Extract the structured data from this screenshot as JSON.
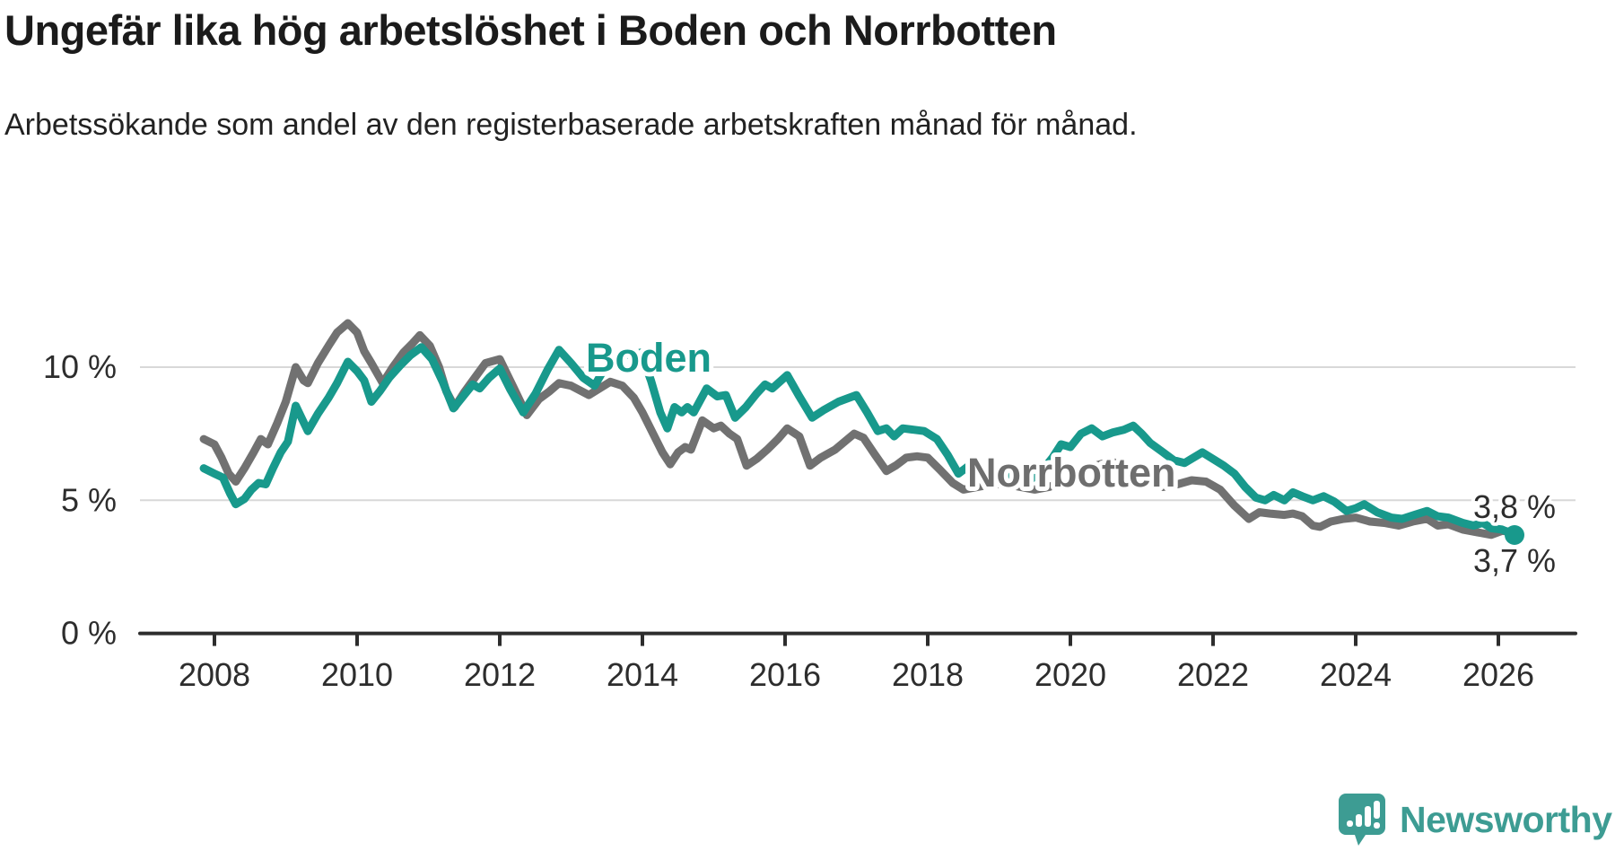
{
  "branding": {
    "name": "Newsworthy",
    "icon": "newsworthy-speech-bubble-chart-icon",
    "color": "#3d9c93"
  },
  "chart_data": {
    "type": "line",
    "title": "Ungefär lika hög arbetslöshet i Boden och Norrbotten",
    "subtitle": "Arbetssökande som andel av den registerbaserade arbetskraften månad för månad.",
    "unit": "%",
    "x_unit": "year (monthly data)",
    "xlim": [
      2007.85,
      2026.45
    ],
    "ylim": [
      0,
      12
    ],
    "grid": "horizontal",
    "yticks": [
      {
        "value": 0,
        "label": "0 %"
      },
      {
        "value": 5,
        "label": "5 %"
      },
      {
        "value": 10,
        "label": "10 %"
      }
    ],
    "xticks": [
      {
        "value": 2008,
        "label": "2008"
      },
      {
        "value": 2010,
        "label": "2010"
      },
      {
        "value": 2012,
        "label": "2012"
      },
      {
        "value": 2014,
        "label": "2014"
      },
      {
        "value": 2016,
        "label": "2016"
      },
      {
        "value": 2018,
        "label": "2018"
      },
      {
        "value": 2020,
        "label": "2020"
      },
      {
        "value": 2022,
        "label": "2022"
      },
      {
        "value": 2024,
        "label": "2024"
      },
      {
        "value": 2026,
        "label": "2026"
      }
    ],
    "series": [
      {
        "name": "Norrbotten",
        "color": "#717171",
        "inline_label": "Norrbotten",
        "end_label": "3,8 %",
        "end_value": 3.8,
        "points": [
          [
            2007.85,
            7.3
          ],
          [
            2008.0,
            7.1
          ],
          [
            2008.1,
            6.6
          ],
          [
            2008.2,
            6.0
          ],
          [
            2008.3,
            5.7
          ],
          [
            2008.42,
            6.2
          ],
          [
            2008.55,
            6.8
          ],
          [
            2008.65,
            7.3
          ],
          [
            2008.75,
            7.1
          ],
          [
            2008.88,
            7.9
          ],
          [
            2009.0,
            8.7
          ],
          [
            2009.14,
            10.0
          ],
          [
            2009.25,
            9.5
          ],
          [
            2009.31,
            9.4
          ],
          [
            2009.45,
            10.15
          ],
          [
            2009.6,
            10.8
          ],
          [
            2009.72,
            11.3
          ],
          [
            2009.87,
            11.65
          ],
          [
            2010.0,
            11.3
          ],
          [
            2010.1,
            10.6
          ],
          [
            2010.2,
            10.15
          ],
          [
            2010.36,
            9.4
          ],
          [
            2010.5,
            10.0
          ],
          [
            2010.65,
            10.55
          ],
          [
            2010.78,
            10.9
          ],
          [
            2010.88,
            11.2
          ],
          [
            2011.02,
            10.8
          ],
          [
            2011.15,
            10.0
          ],
          [
            2011.25,
            9.1
          ],
          [
            2011.37,
            8.5
          ],
          [
            2011.5,
            9.05
          ],
          [
            2011.65,
            9.6
          ],
          [
            2011.8,
            10.15
          ],
          [
            2012.0,
            10.3
          ],
          [
            2012.2,
            9.2
          ],
          [
            2012.38,
            8.2
          ],
          [
            2012.55,
            8.8
          ],
          [
            2012.7,
            9.1
          ],
          [
            2012.83,
            9.4
          ],
          [
            2013.0,
            9.3
          ],
          [
            2013.25,
            8.95
          ],
          [
            2013.55,
            9.45
          ],
          [
            2013.72,
            9.3
          ],
          [
            2013.88,
            8.85
          ],
          [
            2014.0,
            8.3
          ],
          [
            2014.15,
            7.5
          ],
          [
            2014.28,
            6.8
          ],
          [
            2014.39,
            6.35
          ],
          [
            2014.5,
            6.8
          ],
          [
            2014.6,
            7.0
          ],
          [
            2014.68,
            6.9
          ],
          [
            2014.84,
            8.0
          ],
          [
            2015.0,
            7.7
          ],
          [
            2015.1,
            7.8
          ],
          [
            2015.22,
            7.5
          ],
          [
            2015.33,
            7.3
          ],
          [
            2015.46,
            6.3
          ],
          [
            2015.6,
            6.55
          ],
          [
            2015.75,
            6.9
          ],
          [
            2015.9,
            7.3
          ],
          [
            2016.03,
            7.7
          ],
          [
            2016.2,
            7.4
          ],
          [
            2016.35,
            6.3
          ],
          [
            2016.5,
            6.6
          ],
          [
            2016.7,
            6.9
          ],
          [
            2016.97,
            7.5
          ],
          [
            2017.1,
            7.35
          ],
          [
            2017.25,
            6.75
          ],
          [
            2017.42,
            6.1
          ],
          [
            2017.55,
            6.3
          ],
          [
            2017.7,
            6.6
          ],
          [
            2017.85,
            6.65
          ],
          [
            2018.0,
            6.6
          ],
          [
            2018.17,
            6.15
          ],
          [
            2018.35,
            5.65
          ],
          [
            2018.5,
            5.4
          ],
          [
            2018.7,
            5.5
          ],
          [
            2018.9,
            5.6
          ],
          [
            2019.1,
            5.6
          ],
          [
            2019.3,
            5.5
          ],
          [
            2019.5,
            5.4
          ],
          [
            2019.7,
            5.5
          ],
          [
            2019.9,
            5.7
          ],
          [
            2020.1,
            6.0
          ],
          [
            2020.35,
            6.3
          ],
          [
            2020.55,
            6.45
          ],
          [
            2020.75,
            6.35
          ],
          [
            2020.95,
            6.1
          ],
          [
            2021.15,
            5.7
          ],
          [
            2021.3,
            5.5
          ],
          [
            2021.5,
            5.6
          ],
          [
            2021.7,
            5.75
          ],
          [
            2021.9,
            5.7
          ],
          [
            2022.1,
            5.4
          ],
          [
            2022.3,
            4.8
          ],
          [
            2022.5,
            4.3
          ],
          [
            2022.65,
            4.55
          ],
          [
            2022.8,
            4.5
          ],
          [
            2023.0,
            4.45
          ],
          [
            2023.12,
            4.5
          ],
          [
            2023.25,
            4.4
          ],
          [
            2023.4,
            4.05
          ],
          [
            2023.5,
            4.0
          ],
          [
            2023.65,
            4.2
          ],
          [
            2023.83,
            4.3
          ],
          [
            2024.0,
            4.35
          ],
          [
            2024.2,
            4.2
          ],
          [
            2024.4,
            4.15
          ],
          [
            2024.6,
            4.05
          ],
          [
            2024.8,
            4.2
          ],
          [
            2025.0,
            4.3
          ],
          [
            2025.15,
            4.05
          ],
          [
            2025.3,
            4.1
          ],
          [
            2025.5,
            3.9
          ],
          [
            2025.7,
            3.8
          ],
          [
            2025.9,
            3.7
          ],
          [
            2026.05,
            3.85
          ],
          [
            2026.23,
            3.8
          ]
        ]
      },
      {
        "name": "Boden",
        "color": "#18998c",
        "inline_label": "Boden",
        "end_label": "3,7 %",
        "end_value": 3.7,
        "end_dot": true,
        "points": [
          [
            2007.85,
            6.2
          ],
          [
            2008.0,
            6.0
          ],
          [
            2008.12,
            5.85
          ],
          [
            2008.22,
            5.25
          ],
          [
            2008.3,
            4.85
          ],
          [
            2008.42,
            5.05
          ],
          [
            2008.52,
            5.4
          ],
          [
            2008.62,
            5.65
          ],
          [
            2008.72,
            5.6
          ],
          [
            2008.82,
            6.2
          ],
          [
            2008.93,
            6.8
          ],
          [
            2009.03,
            7.2
          ],
          [
            2009.14,
            8.55
          ],
          [
            2009.31,
            7.6
          ],
          [
            2009.45,
            8.25
          ],
          [
            2009.6,
            8.85
          ],
          [
            2009.72,
            9.4
          ],
          [
            2009.87,
            10.2
          ],
          [
            2010.0,
            9.85
          ],
          [
            2010.1,
            9.5
          ],
          [
            2010.2,
            8.7
          ],
          [
            2010.32,
            9.1
          ],
          [
            2010.45,
            9.6
          ],
          [
            2010.6,
            10.05
          ],
          [
            2010.75,
            10.45
          ],
          [
            2010.9,
            10.75
          ],
          [
            2011.05,
            10.3
          ],
          [
            2011.2,
            9.45
          ],
          [
            2011.35,
            8.45
          ],
          [
            2011.5,
            8.95
          ],
          [
            2011.62,
            9.35
          ],
          [
            2011.72,
            9.2
          ],
          [
            2011.85,
            9.6
          ],
          [
            2012.0,
            9.95
          ],
          [
            2012.15,
            9.15
          ],
          [
            2012.33,
            8.3
          ],
          [
            2012.5,
            9.0
          ],
          [
            2012.67,
            9.9
          ],
          [
            2012.83,
            10.65
          ],
          [
            2013.0,
            10.15
          ],
          [
            2013.17,
            9.6
          ],
          [
            2013.33,
            9.3
          ],
          [
            2013.5,
            10.1
          ],
          [
            2013.67,
            10.5
          ],
          [
            2013.85,
            10.45
          ],
          [
            2013.98,
            10.55
          ],
          [
            2014.12,
            9.5
          ],
          [
            2014.25,
            8.3
          ],
          [
            2014.35,
            7.7
          ],
          [
            2014.45,
            8.5
          ],
          [
            2014.55,
            8.3
          ],
          [
            2014.63,
            8.5
          ],
          [
            2014.72,
            8.3
          ],
          [
            2014.9,
            9.2
          ],
          [
            2015.05,
            8.9
          ],
          [
            2015.17,
            8.95
          ],
          [
            2015.3,
            8.1
          ],
          [
            2015.45,
            8.5
          ],
          [
            2015.6,
            9.0
          ],
          [
            2015.72,
            9.35
          ],
          [
            2015.82,
            9.2
          ],
          [
            2016.03,
            9.7
          ],
          [
            2016.2,
            8.9
          ],
          [
            2016.38,
            8.1
          ],
          [
            2016.55,
            8.4
          ],
          [
            2016.75,
            8.7
          ],
          [
            2017.0,
            8.95
          ],
          [
            2017.15,
            8.3
          ],
          [
            2017.3,
            7.6
          ],
          [
            2017.42,
            7.7
          ],
          [
            2017.53,
            7.4
          ],
          [
            2017.65,
            7.7
          ],
          [
            2017.8,
            7.65
          ],
          [
            2017.95,
            7.6
          ],
          [
            2018.13,
            7.3
          ],
          [
            2018.28,
            6.7
          ],
          [
            2018.43,
            6.0
          ],
          [
            2018.58,
            6.3
          ],
          [
            2018.72,
            6.1
          ],
          [
            2018.87,
            6.3
          ],
          [
            2019.0,
            6.2
          ],
          [
            2019.15,
            5.9
          ],
          [
            2019.3,
            6.0
          ],
          [
            2019.45,
            5.8
          ],
          [
            2019.6,
            6.1
          ],
          [
            2019.75,
            6.6
          ],
          [
            2019.87,
            7.1
          ],
          [
            2020.0,
            7.0
          ],
          [
            2020.15,
            7.5
          ],
          [
            2020.3,
            7.7
          ],
          [
            2020.45,
            7.4
          ],
          [
            2020.6,
            7.55
          ],
          [
            2020.75,
            7.65
          ],
          [
            2020.88,
            7.8
          ],
          [
            2021.0,
            7.5
          ],
          [
            2021.12,
            7.15
          ],
          [
            2021.3,
            6.8
          ],
          [
            2021.45,
            6.5
          ],
          [
            2021.6,
            6.4
          ],
          [
            2021.85,
            6.8
          ],
          [
            2022.0,
            6.55
          ],
          [
            2022.15,
            6.3
          ],
          [
            2022.3,
            6.0
          ],
          [
            2022.45,
            5.5
          ],
          [
            2022.6,
            5.1
          ],
          [
            2022.73,
            5.0
          ],
          [
            2022.85,
            5.2
          ],
          [
            2023.0,
            5.0
          ],
          [
            2023.12,
            5.3
          ],
          [
            2023.25,
            5.15
          ],
          [
            2023.4,
            5.0
          ],
          [
            2023.55,
            5.15
          ],
          [
            2023.7,
            4.95
          ],
          [
            2023.87,
            4.6
          ],
          [
            2024.0,
            4.7
          ],
          [
            2024.12,
            4.85
          ],
          [
            2024.3,
            4.55
          ],
          [
            2024.5,
            4.35
          ],
          [
            2024.65,
            4.3
          ],
          [
            2024.82,
            4.45
          ],
          [
            2025.0,
            4.6
          ],
          [
            2025.15,
            4.4
          ],
          [
            2025.3,
            4.35
          ],
          [
            2025.5,
            4.15
          ],
          [
            2025.65,
            4.05
          ],
          [
            2025.78,
            4.15
          ],
          [
            2025.9,
            3.95
          ],
          [
            2026.05,
            3.9
          ],
          [
            2026.23,
            3.7
          ]
        ]
      }
    ]
  }
}
